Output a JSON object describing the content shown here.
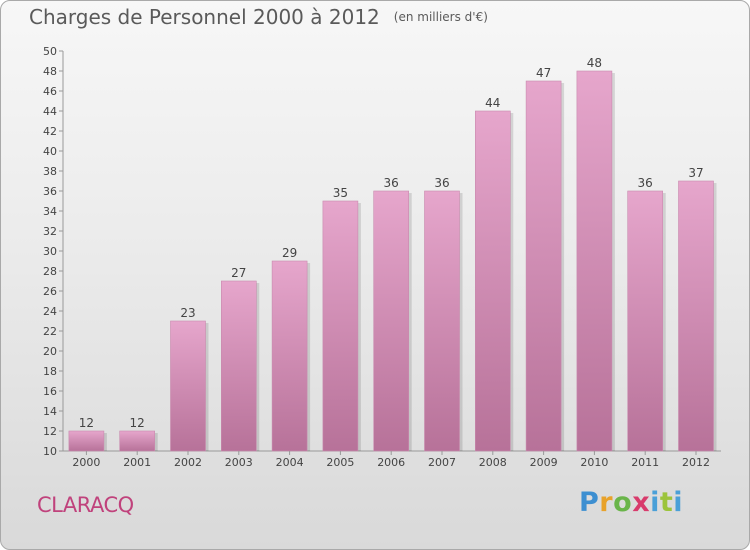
{
  "header": {
    "title": "Charges de Personnel 2000 à 2012",
    "subtitle": "(en milliers d'€)"
  },
  "footer": {
    "town": "CLARACQ",
    "logo_parts": [
      "P",
      "r",
      "o",
      "x",
      "i",
      "t",
      "i"
    ]
  },
  "colors": {
    "bar_top": "#e6a6cc",
    "bar_bottom": "#b77299",
    "title": "#5a5a5a",
    "town": "#c0427c"
  },
  "chart_data": {
    "type": "bar",
    "title": "Charges de Personnel 2000 à 2012",
    "subtitle": "(en milliers d'€)",
    "categories": [
      "2000",
      "2001",
      "2002",
      "2003",
      "2004",
      "2005",
      "2006",
      "2007",
      "2008",
      "2009",
      "2010",
      "2011",
      "2012"
    ],
    "values": [
      12,
      12,
      23,
      27,
      29,
      35,
      36,
      36,
      44,
      47,
      48,
      36,
      37
    ],
    "ylim": [
      10,
      50
    ],
    "yticks": [
      10,
      12,
      14,
      16,
      18,
      20,
      22,
      24,
      26,
      28,
      30,
      32,
      34,
      36,
      38,
      40,
      42,
      44,
      46,
      48,
      50
    ],
    "grid": false,
    "legend": "none"
  }
}
